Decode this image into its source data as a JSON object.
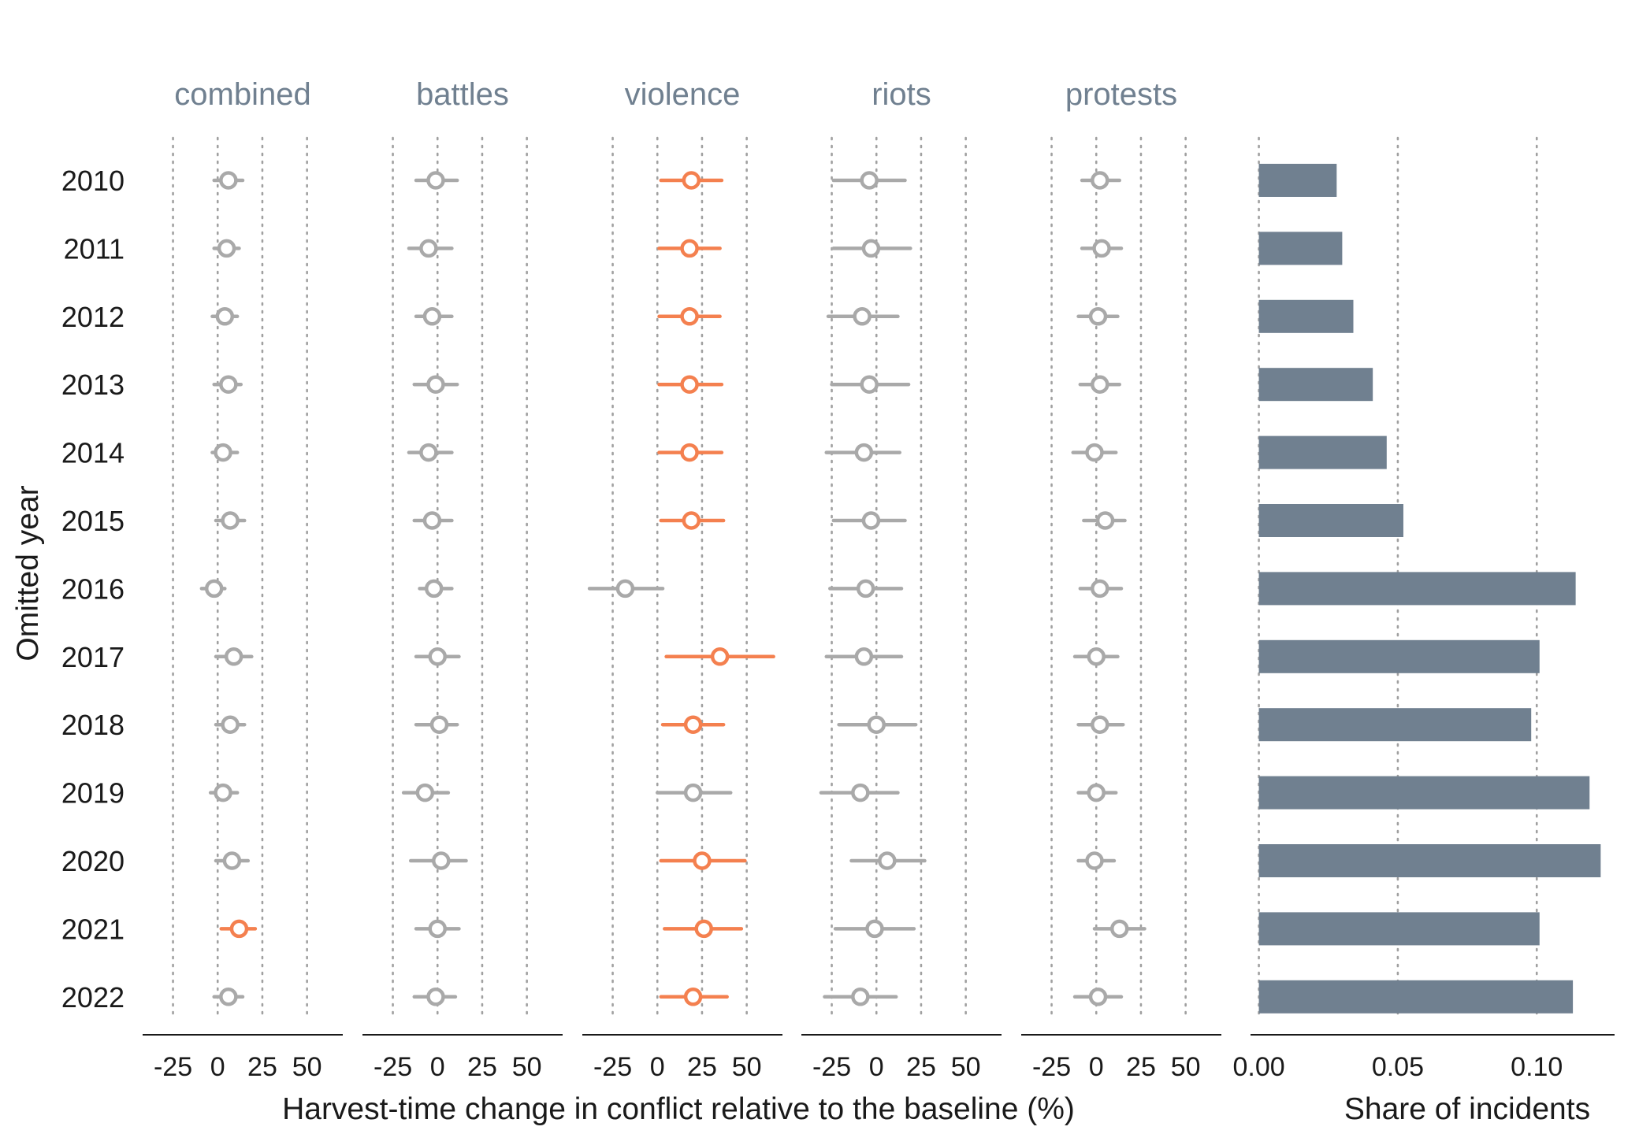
{
  "chart_data": [
    {
      "type": "scatter",
      "subtype": "dot-and-whisker",
      "xlabel": "Harvest-time change in conflict relative to the baseline (%)",
      "ylabel": "Omitted year",
      "years": [
        "2010",
        "2011",
        "2012",
        "2013",
        "2014",
        "2015",
        "2016",
        "2017",
        "2018",
        "2019",
        "2020",
        "2021",
        "2022"
      ],
      "x_ticks": [
        -25,
        0,
        25,
        50
      ],
      "xlim": [
        -42,
        70
      ],
      "grid": "vertical dotted",
      "colors": {
        "significant": "#F4804F",
        "not_significant": "#A9A9A9"
      },
      "panels": [
        {
          "name": "combined",
          "estimates": [
            6,
            5,
            4,
            6,
            3,
            7,
            -2,
            9,
            7,
            3,
            8,
            12,
            6
          ],
          "ci_low": [
            -2,
            -2,
            -3,
            -2,
            -3,
            -1,
            -9,
            -1,
            -1,
            -4,
            -1,
            2,
            -2
          ],
          "ci_high": [
            14,
            12,
            11,
            13,
            11,
            15,
            4,
            19,
            15,
            11,
            17,
            21,
            14
          ],
          "significant": [
            false,
            false,
            false,
            false,
            false,
            false,
            false,
            false,
            false,
            false,
            false,
            true,
            false
          ]
        },
        {
          "name": "battles",
          "estimates": [
            -1,
            -5,
            -3,
            -1,
            -5,
            -3,
            -2,
            0,
            1,
            -7,
            2,
            0,
            -1
          ],
          "ci_low": [
            -12,
            -16,
            -12,
            -13,
            -16,
            -13,
            -10,
            -12,
            -12,
            -19,
            -15,
            -12,
            -13
          ],
          "ci_high": [
            11,
            8,
            8,
            11,
            8,
            8,
            8,
            12,
            11,
            6,
            16,
            12,
            10
          ],
          "significant": [
            false,
            false,
            false,
            false,
            false,
            false,
            false,
            false,
            false,
            false,
            false,
            false,
            false
          ]
        },
        {
          "name": "violence",
          "estimates": [
            19,
            18,
            18,
            18,
            18,
            19,
            -18,
            35,
            20,
            20,
            25,
            26,
            20
          ],
          "ci_low": [
            2,
            1,
            1,
            1,
            1,
            2,
            -38,
            5,
            3,
            0,
            2,
            4,
            2
          ],
          "ci_high": [
            36,
            35,
            35,
            36,
            36,
            37,
            3,
            65,
            37,
            41,
            49,
            47,
            39
          ],
          "significant": [
            true,
            true,
            true,
            true,
            true,
            true,
            false,
            true,
            true,
            false,
            true,
            true,
            true
          ]
        },
        {
          "name": "riots",
          "estimates": [
            -4,
            -3,
            -8,
            -4,
            -7,
            -3,
            -6,
            -7,
            0,
            -9,
            6,
            -1,
            -9
          ],
          "ci_low": [
            -24,
            -24,
            -27,
            -25,
            -28,
            -24,
            -26,
            -28,
            -21,
            -31,
            -14,
            -23,
            -29
          ],
          "ci_high": [
            16,
            19,
            12,
            18,
            13,
            16,
            14,
            14,
            22,
            12,
            27,
            21,
            11
          ],
          "significant": [
            false,
            false,
            false,
            false,
            false,
            false,
            false,
            false,
            false,
            false,
            false,
            false,
            false
          ]
        },
        {
          "name": "protests",
          "estimates": [
            2,
            3,
            1,
            2,
            -1,
            5,
            2,
            0,
            2,
            0,
            -1,
            13,
            1
          ],
          "ci_low": [
            -8,
            -8,
            -10,
            -9,
            -13,
            -7,
            -9,
            -12,
            -10,
            -10,
            -10,
            -1,
            -12
          ],
          "ci_high": [
            13,
            14,
            12,
            13,
            11,
            16,
            14,
            12,
            15,
            11,
            10,
            27,
            14
          ],
          "significant": [
            false,
            false,
            false,
            false,
            false,
            false,
            false,
            false,
            false,
            false,
            false,
            false,
            false
          ]
        }
      ]
    },
    {
      "type": "bar",
      "orientation": "horizontal",
      "categories": [
        "2010",
        "2011",
        "2012",
        "2013",
        "2014",
        "2015",
        "2016",
        "2017",
        "2018",
        "2019",
        "2020",
        "2021",
        "2022"
      ],
      "values": [
        0.028,
        0.03,
        0.034,
        0.041,
        0.046,
        0.052,
        0.114,
        0.101,
        0.098,
        0.119,
        0.123,
        0.101,
        0.113
      ],
      "xlabel": "Share of incidents",
      "x_ticks": [
        "0.00",
        "0.05",
        "0.10"
      ],
      "xlim": [
        -0.003,
        0.128
      ],
      "bar_color": "#708090",
      "grid": "vertical dotted"
    }
  ]
}
